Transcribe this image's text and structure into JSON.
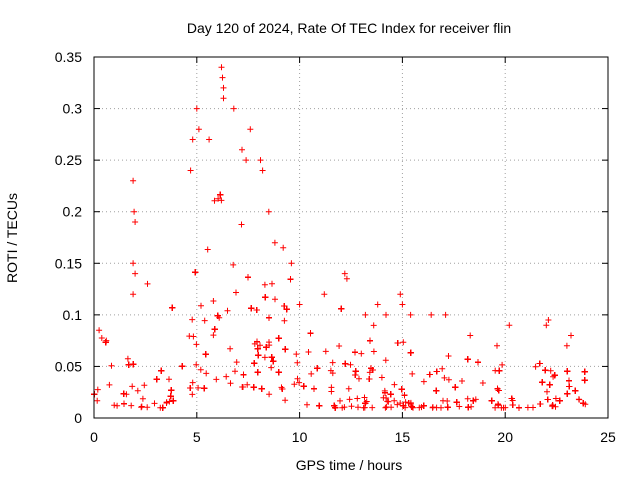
{
  "chart_data": {
    "type": "scatter",
    "title": "Day 120 of 2024, Rate Of TEC Index for receiver flin",
    "xlabel": "GPS time / hours",
    "ylabel": "ROTI / TECUs",
    "xlim": [
      0,
      25
    ],
    "ylim": [
      0,
      0.35
    ],
    "x_ticks": [
      0,
      5,
      10,
      15,
      20,
      25
    ],
    "x_tick_labels": [
      "0",
      "5",
      "10",
      "15",
      "20",
      "25"
    ],
    "y_ticks": [
      0,
      0.05,
      0.1,
      0.15,
      0.2,
      0.25,
      0.3,
      0.35
    ],
    "y_tick_labels": [
      "0",
      "0.05",
      "0.1",
      "0.15",
      "0.2",
      "0.25",
      "0.3",
      "0.35"
    ],
    "grid": true,
    "marker": "plus",
    "series": [
      {
        "name": "ROTI",
        "color": "#ff0000",
        "x_range": [
          0,
          24
        ],
        "notes": "dense cloud of points; baseline mostly 0.005-0.05 TECUs",
        "envelope": {
          "x": [
            0,
            0.5,
            1,
            1.5,
            2,
            2.5,
            3,
            3.5,
            4,
            4.5,
            5,
            5.5,
            6,
            6.5,
            7,
            7.5,
            8,
            8.5,
            9,
            9.5,
            10,
            10.5,
            11,
            11.5,
            12,
            12.5,
            13,
            13.5,
            14,
            14.5,
            15,
            15.5,
            16,
            16.5,
            17,
            17.5,
            18,
            18.5,
            19,
            19.5,
            20,
            20.5,
            21,
            21.5,
            22,
            22.5,
            23,
            23.5,
            24
          ],
          "upper": [
            0.07,
            0.08,
            0.07,
            0.08,
            0.1,
            0.08,
            0.07,
            0.09,
            0.12,
            0.14,
            0.16,
            0.2,
            0.24,
            0.22,
            0.2,
            0.18,
            0.16,
            0.14,
            0.15,
            0.14,
            0.1,
            0.09,
            0.09,
            0.1,
            0.11,
            0.09,
            0.09,
            0.1,
            0.09,
            0.07,
            0.08,
            0.06,
            0.06,
            0.06,
            0.06,
            0.07,
            0.06,
            0.06,
            0.06,
            0.06,
            0.06,
            0.06,
            0.06,
            0.06,
            0.07,
            0.06,
            0.06,
            0.06,
            0.05
          ],
          "lower": [
            0.01,
            0.01,
            0.01,
            0.01,
            0.01,
            0.01,
            0.01,
            0.01,
            0.015,
            0.02,
            0.025,
            0.03,
            0.035,
            0.035,
            0.03,
            0.03,
            0.025,
            0.02,
            0.02,
            0.015,
            0.01,
            0.01,
            0.01,
            0.01,
            0.01,
            0.01,
            0.01,
            0.01,
            0.01,
            0.01,
            0.01,
            0.01,
            0.01,
            0.01,
            0.01,
            0.01,
            0.01,
            0.01,
            0.01,
            0.01,
            0.01,
            0.01,
            0.01,
            0.01,
            0.01,
            0.01,
            0.01,
            0.01,
            0.01
          ]
        },
        "highlighted_points": [
          {
            "x": 1.9,
            "y": 0.23
          },
          {
            "x": 1.95,
            "y": 0.2
          },
          {
            "x": 2.0,
            "y": 0.19
          },
          {
            "x": 1.9,
            "y": 0.15
          },
          {
            "x": 2.0,
            "y": 0.14
          },
          {
            "x": 1.9,
            "y": 0.12
          },
          {
            "x": 2.6,
            "y": 0.13
          },
          {
            "x": 0.25,
            "y": 0.085
          },
          {
            "x": 0.6,
            "y": 0.075
          },
          {
            "x": 4.7,
            "y": 0.24
          },
          {
            "x": 4.8,
            "y": 0.27
          },
          {
            "x": 5.0,
            "y": 0.3
          },
          {
            "x": 5.1,
            "y": 0.28
          },
          {
            "x": 5.6,
            "y": 0.27
          },
          {
            "x": 6.2,
            "y": 0.34
          },
          {
            "x": 6.25,
            "y": 0.33
          },
          {
            "x": 6.3,
            "y": 0.32
          },
          {
            "x": 6.3,
            "y": 0.31
          },
          {
            "x": 6.8,
            "y": 0.3
          },
          {
            "x": 7.2,
            "y": 0.26
          },
          {
            "x": 7.4,
            "y": 0.25
          },
          {
            "x": 7.6,
            "y": 0.28
          },
          {
            "x": 8.1,
            "y": 0.25
          },
          {
            "x": 8.2,
            "y": 0.24
          },
          {
            "x": 8.5,
            "y": 0.2
          },
          {
            "x": 8.8,
            "y": 0.17
          },
          {
            "x": 9.2,
            "y": 0.165
          },
          {
            "x": 9.6,
            "y": 0.15
          },
          {
            "x": 10.0,
            "y": 0.11
          },
          {
            "x": 11.2,
            "y": 0.12
          },
          {
            "x": 12.2,
            "y": 0.14
          },
          {
            "x": 12.3,
            "y": 0.135
          },
          {
            "x": 13.2,
            "y": 0.1
          },
          {
            "x": 13.8,
            "y": 0.11
          },
          {
            "x": 14.2,
            "y": 0.1
          },
          {
            "x": 14.9,
            "y": 0.12
          },
          {
            "x": 15.0,
            "y": 0.11
          },
          {
            "x": 15.4,
            "y": 0.1
          },
          {
            "x": 16.4,
            "y": 0.1
          },
          {
            "x": 17.1,
            "y": 0.1
          },
          {
            "x": 18.3,
            "y": 0.08
          },
          {
            "x": 19.6,
            "y": 0.07
          },
          {
            "x": 20.2,
            "y": 0.09
          },
          {
            "x": 22.0,
            "y": 0.09
          },
          {
            "x": 22.1,
            "y": 0.095
          },
          {
            "x": 23.0,
            "y": 0.07
          },
          {
            "x": 23.2,
            "y": 0.08
          }
        ]
      }
    ]
  }
}
